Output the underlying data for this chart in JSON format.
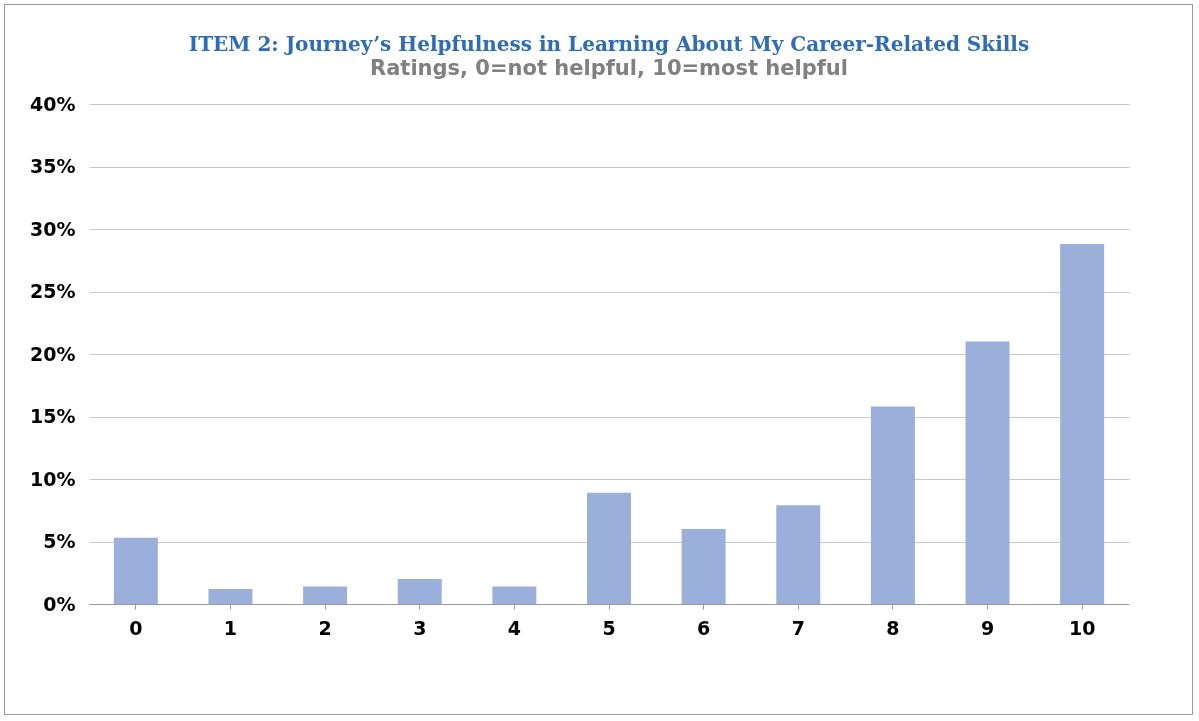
{
  "chart_data": {
    "type": "bar",
    "title": "ITEM 2: Journey’s Helpfulness in Learning About My Career-Related Skills",
    "subtitle": "Ratings, 0=not helpful, 10=most helpful",
    "categories": [
      "0",
      "1",
      "2",
      "3",
      "4",
      "5",
      "6",
      "7",
      "8",
      "9",
      "10"
    ],
    "values": [
      5.3,
      1.2,
      1.4,
      2.0,
      1.4,
      8.9,
      6.0,
      7.9,
      15.8,
      21.0,
      28.8
    ],
    "color": "#9aafda",
    "ylim": [
      0,
      40
    ],
    "yticks": [
      {
        "value": 0,
        "label": "0%"
      },
      {
        "value": 5,
        "label": "5%"
      },
      {
        "value": 10,
        "label": "10%"
      },
      {
        "value": 15,
        "label": "15%"
      },
      {
        "value": 20,
        "label": "20%"
      },
      {
        "value": 25,
        "label": "25%"
      },
      {
        "value": 30,
        "label": "30%"
      },
      {
        "value": 35,
        "label": "35%"
      },
      {
        "value": 40,
        "label": "40%"
      }
    ],
    "grid": "y"
  }
}
